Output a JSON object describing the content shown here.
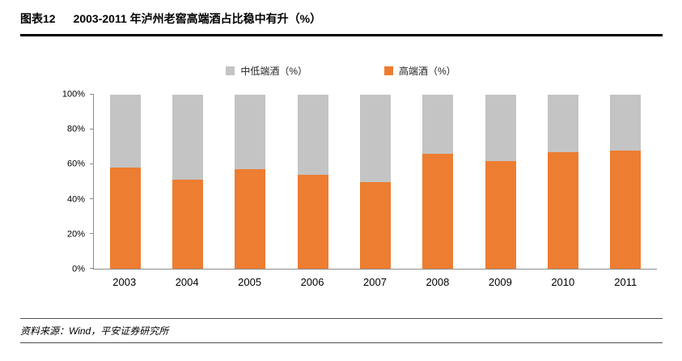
{
  "header": {
    "label": "图表12",
    "title": "2003-2011 年泸州老窖高端酒占比稳中有升（%）"
  },
  "chart_data": {
    "type": "bar",
    "stacked": true,
    "stacked_percent": true,
    "title": "2003-2011 年泸州老窖高端酒占比稳中有升（%）",
    "categories": [
      "2003",
      "2004",
      "2005",
      "2006",
      "2007",
      "2008",
      "2009",
      "2010",
      "2011"
    ],
    "series": [
      {
        "name": "中低端酒（%）",
        "color": "#C4C4C4",
        "values": [
          42,
          49,
          43,
          46,
          50,
          34,
          38,
          33,
          32
        ]
      },
      {
        "name": "高端酒（%）",
        "color": "#ED7D31",
        "values": [
          58,
          51,
          57,
          54,
          50,
          66,
          62,
          67,
          68
        ]
      }
    ],
    "xlabel": "",
    "ylabel": "",
    "ylim": [
      0,
      100
    ],
    "yticks": [
      0,
      20,
      40,
      60,
      80,
      100
    ],
    "ytick_labels": [
      "0%",
      "20%",
      "40%",
      "60%",
      "80%",
      "100%"
    ],
    "legend_position": "top",
    "grid": false,
    "axis_color": "#8c8c8c"
  },
  "footer": {
    "source": "资料来源：Wind，平安证券研究所"
  }
}
